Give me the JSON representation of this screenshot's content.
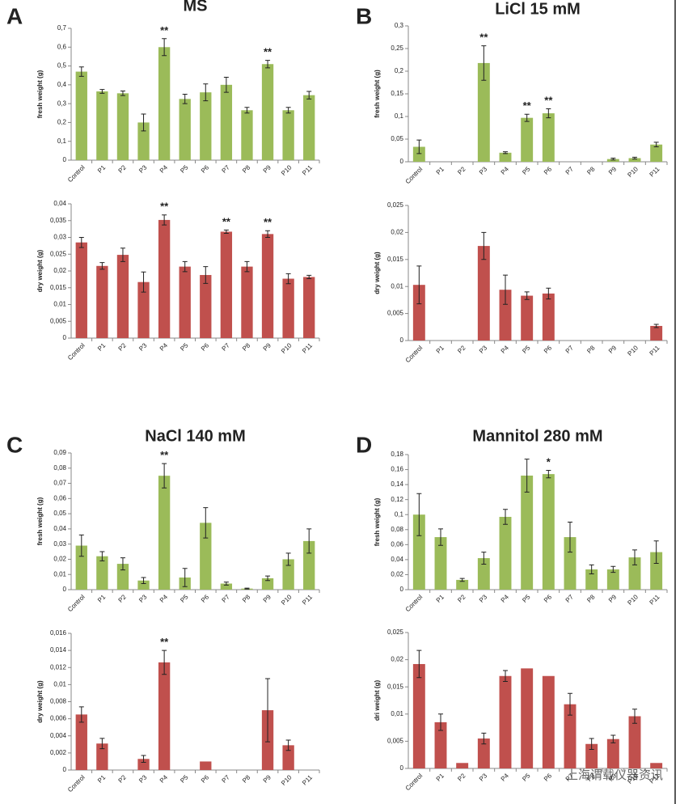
{
  "chart_data": [
    {
      "type": "bar",
      "panel": "A",
      "title": "MS",
      "ylabel": "fresh weight (g)",
      "color": "#9bbb59",
      "categories": [
        "Control",
        "P1",
        "P2",
        "P3",
        "P4",
        "P5",
        "P6",
        "P7",
        "P8",
        "P9",
        "P10",
        "P11"
      ],
      "values": [
        0.47,
        0.365,
        0.355,
        0.2,
        0.6,
        0.325,
        0.36,
        0.4,
        0.265,
        0.51,
        0.265,
        0.345
      ],
      "errors": [
        0.025,
        0.01,
        0.012,
        0.045,
        0.045,
        0.025,
        0.045,
        0.04,
        0.015,
        0.02,
        0.015,
        0.02
      ],
      "significance": [
        null,
        null,
        null,
        null,
        "**",
        null,
        null,
        null,
        null,
        "**",
        null,
        null
      ],
      "ylim": [
        0,
        0.7
      ],
      "yticks": [
        0,
        {
          "value": 0.1,
          "label": "0,1"
        },
        {
          "value": 0.2,
          "label": "0,2"
        },
        {
          "value": 0.3,
          "label": "0,3"
        },
        {
          "value": 0.4,
          "label": "0,4"
        },
        {
          "value": 0.5,
          "label": "0,5"
        },
        {
          "value": 0.6,
          "label": "0,6"
        },
        {
          "value": 0.7,
          "label": "0,7"
        }
      ]
    },
    {
      "type": "bar",
      "ylabel": "dry weight (g)",
      "color": "#c0504d",
      "categories": [
        "Control",
        "P1",
        "P2",
        "P3",
        "P4",
        "P5",
        "P6",
        "P7",
        "P8",
        "P9",
        "P10",
        "P11"
      ],
      "values": [
        0.0285,
        0.0215,
        0.0248,
        0.0167,
        0.0352,
        0.0213,
        0.0188,
        0.0317,
        0.0213,
        0.031,
        0.0177,
        0.0182
      ],
      "errors": [
        0.0015,
        0.001,
        0.002,
        0.003,
        0.0015,
        0.0015,
        0.0025,
        0.0005,
        0.0015,
        0.001,
        0.0015,
        0.0005
      ],
      "significance": [
        null,
        null,
        null,
        null,
        "**",
        null,
        null,
        "**",
        null,
        "**",
        null,
        null
      ],
      "ylim": [
        0,
        0.04
      ],
      "yticks": [
        0,
        {
          "value": 0.005,
          "label": "0,005"
        },
        {
          "value": 0.01,
          "label": "0,01"
        },
        {
          "value": 0.015,
          "label": "0,015"
        },
        {
          "value": 0.02,
          "label": "0,02"
        },
        {
          "value": 0.025,
          "label": "0,025"
        },
        {
          "value": 0.03,
          "label": "0,03"
        },
        {
          "value": 0.035,
          "label": "0,035"
        },
        {
          "value": 0.04,
          "label": "0,04"
        }
      ]
    },
    {
      "type": "bar",
      "panel": "B",
      "title": "LiCl 15 mM",
      "ylabel": "fresh weight (g)",
      "color": "#9bbb59",
      "categories": [
        "Control",
        "P1",
        "P2",
        "P3",
        "P4",
        "P5",
        "P6",
        "P7",
        "P8",
        "P9",
        "P10",
        "P11"
      ],
      "values": [
        0.033,
        null,
        null,
        0.218,
        0.02,
        0.097,
        0.107,
        null,
        null,
        0.006,
        0.008,
        0.038
      ],
      "errors": [
        0.015,
        null,
        null,
        0.038,
        0.002,
        0.008,
        0.01,
        null,
        null,
        0.002,
        0.002,
        0.005
      ],
      "significance": [
        null,
        null,
        null,
        "**",
        null,
        "**",
        "**",
        null,
        null,
        null,
        null,
        null
      ],
      "ylim": [
        0,
        0.3
      ],
      "yticks": [
        0,
        {
          "value": 0.05,
          "label": "0,05"
        },
        {
          "value": 0.1,
          "label": "0,1"
        },
        {
          "value": 0.15,
          "label": "0,15"
        },
        {
          "value": 0.2,
          "label": "0,2"
        },
        {
          "value": 0.25,
          "label": "0,25"
        },
        {
          "value": 0.3,
          "label": "0,3"
        }
      ]
    },
    {
      "type": "bar",
      "ylabel": "dry weight (g)",
      "color": "#c0504d",
      "categories": [
        "Control",
        "P1",
        "P2",
        "P3",
        "P4",
        "P5",
        "P6",
        "P7",
        "P8",
        "P9",
        "P10",
        "P11"
      ],
      "values": [
        0.0103,
        null,
        null,
        0.0175,
        0.0094,
        0.0083,
        0.0087,
        null,
        null,
        null,
        null,
        0.0027
      ],
      "errors": [
        0.0035,
        null,
        null,
        0.0025,
        0.0027,
        0.0007,
        0.001,
        null,
        null,
        null,
        null,
        0.0003
      ],
      "ylim": [
        0,
        0.025
      ],
      "yticks": [
        0,
        {
          "value": 0.005,
          "label": "0,005"
        },
        {
          "value": 0.01,
          "label": "0,01"
        },
        {
          "value": 0.015,
          "label": "0,015"
        },
        {
          "value": 0.02,
          "label": "0,02"
        },
        {
          "value": 0.025,
          "label": "0,025"
        }
      ]
    },
    {
      "type": "bar",
      "panel": "C",
      "title": "NaCl 140 mM",
      "ylabel": "fresh weight (g)",
      "color": "#9bbb59",
      "categories": [
        "Control",
        "P1",
        "P2",
        "P3",
        "P4",
        "P5",
        "P6",
        "P7",
        "P8",
        "P9",
        "P10",
        "P11"
      ],
      "values": [
        0.029,
        0.022,
        0.017,
        0.006,
        0.075,
        0.008,
        0.044,
        0.004,
        0.0007,
        0.0075,
        0.02,
        0.032
      ],
      "errors": [
        0.007,
        0.003,
        0.004,
        0.002,
        0.008,
        0.006,
        0.01,
        0.001,
        0.0003,
        0.0015,
        0.004,
        0.008
      ],
      "significance": [
        null,
        null,
        null,
        null,
        "**",
        null,
        null,
        null,
        null,
        null,
        null,
        null
      ],
      "ylim": [
        0,
        0.09
      ],
      "yticks": [
        0,
        {
          "value": 0.01,
          "label": "0,01"
        },
        {
          "value": 0.02,
          "label": "0,02"
        },
        {
          "value": 0.03,
          "label": "0,03"
        },
        {
          "value": 0.04,
          "label": "0,04"
        },
        {
          "value": 0.05,
          "label": "0,05"
        },
        {
          "value": 0.06,
          "label": "0,06"
        },
        {
          "value": 0.07,
          "label": "0,07"
        },
        {
          "value": 0.08,
          "label": "0,08"
        },
        {
          "value": 0.09,
          "label": "0,09"
        }
      ]
    },
    {
      "type": "bar",
      "ylabel": "dry weight (g)",
      "color": "#c0504d",
      "categories": [
        "Control",
        "P1",
        "P2",
        "P3",
        "P4",
        "P5",
        "P6",
        "P7",
        "P8",
        "P9",
        "P10",
        "P11"
      ],
      "values": [
        0.0065,
        0.0031,
        null,
        0.0013,
        0.0126,
        null,
        0.001,
        null,
        null,
        0.007,
        0.0029,
        null
      ],
      "errors": [
        0.0009,
        0.0006,
        null,
        0.0004,
        0.0014,
        null,
        null,
        null,
        null,
        0.0037,
        0.0006,
        null
      ],
      "significance": [
        null,
        null,
        null,
        null,
        "**",
        null,
        null,
        null,
        null,
        null,
        null,
        null
      ],
      "ylim": [
        0,
        0.016
      ],
      "yticks": [
        0,
        {
          "value": 0.002,
          "label": "0,002"
        },
        {
          "value": 0.004,
          "label": "0,004"
        },
        {
          "value": 0.006,
          "label": "0,006"
        },
        {
          "value": 0.008,
          "label": "0,008"
        },
        {
          "value": 0.01,
          "label": "0,01"
        },
        {
          "value": 0.012,
          "label": "0,012"
        },
        {
          "value": 0.014,
          "label": "0,014"
        },
        {
          "value": 0.016,
          "label": "0,016"
        }
      ]
    },
    {
      "type": "bar",
      "panel": "D",
      "title": "Mannitol 280 mM",
      "ylabel": "fresh weight (g)",
      "color": "#9bbb59",
      "categories": [
        "Control",
        "P1",
        "P2",
        "P3",
        "P4",
        "P5",
        "P6",
        "P7",
        "P8",
        "P9",
        "P10",
        "P11"
      ],
      "values": [
        0.1,
        0.07,
        0.013,
        0.042,
        0.097,
        0.152,
        0.154,
        0.07,
        0.027,
        0.027,
        0.043,
        0.05
      ],
      "errors": [
        0.028,
        0.011,
        0.002,
        0.008,
        0.01,
        0.022,
        0.005,
        0.02,
        0.006,
        0.004,
        0.01,
        0.015
      ],
      "significance": [
        null,
        null,
        null,
        null,
        null,
        null,
        "*",
        null,
        null,
        null,
        null,
        null
      ],
      "ylim": [
        0,
        0.18
      ],
      "yticks": [
        0,
        {
          "value": 0.02,
          "label": "0,02"
        },
        {
          "value": 0.04,
          "label": "0,04"
        },
        {
          "value": 0.06,
          "label": "0,06"
        },
        {
          "value": 0.08,
          "label": "0,08"
        },
        {
          "value": 0.1,
          "label": "0,1"
        },
        {
          "value": 0.12,
          "label": "0,12"
        },
        {
          "value": 0.14,
          "label": "0,14"
        },
        {
          "value": 0.16,
          "label": "0,16"
        },
        {
          "value": 0.18,
          "label": "0,18"
        }
      ]
    },
    {
      "type": "bar",
      "ylabel": "dri weight (g)",
      "color": "#c0504d",
      "categories": [
        "Control",
        "P1",
        "P2",
        "P3",
        "P4",
        "P5",
        "P6",
        "P7",
        "P8",
        "P9",
        "P10",
        "P11"
      ],
      "values": [
        0.0192,
        0.0085,
        0.001,
        0.0055,
        0.017,
        0.0184,
        0.017,
        0.0118,
        0.0045,
        0.0054,
        0.0096,
        0.001
      ],
      "errors": [
        0.0025,
        0.0015,
        null,
        0.001,
        0.001,
        null,
        null,
        0.002,
        0.001,
        0.0007,
        0.0013,
        null
      ],
      "ylim": [
        0,
        0.025
      ],
      "yticks": [
        0,
        {
          "value": 0.005,
          "label": "0,005"
        },
        {
          "value": 0.01,
          "label": "0,01"
        },
        {
          "value": 0.015,
          "label": "0,015"
        },
        {
          "value": 0.02,
          "label": "0,02"
        },
        {
          "value": 0.025,
          "label": "0,025"
        }
      ]
    }
  ],
  "watermark": "上海谓载仪器资讯"
}
